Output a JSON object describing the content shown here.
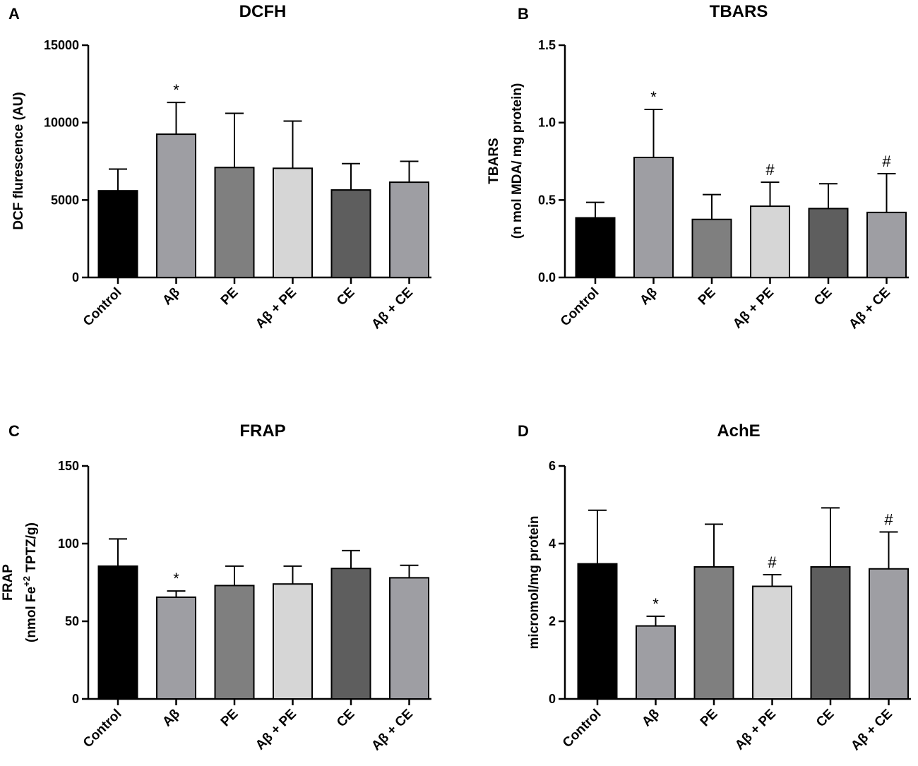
{
  "chart_data": [
    {
      "type": "bar",
      "panel": "A",
      "title": "DCFH",
      "ylabel_lines": [
        "DCF flurescence (AU)"
      ],
      "ylim": [
        0,
        15000
      ],
      "yticks": [
        0,
        5000,
        10000,
        15000
      ],
      "categories": [
        "Control",
        "Aβ",
        "PE",
        "Aβ + PE",
        "CE",
        "Aβ + CE"
      ],
      "values": [
        5600,
        9250,
        7100,
        7050,
        5650,
        6150
      ],
      "errors": [
        1400,
        2050,
        3500,
        3050,
        1700,
        1350
      ],
      "annotations": [
        "",
        "*",
        "",
        "",
        "",
        ""
      ],
      "colors": [
        "#000000",
        "#9e9ea3",
        "#7f7f7f",
        "#d6d6d6",
        "#5e5e5e",
        "#9e9ea3"
      ]
    },
    {
      "type": "bar",
      "panel": "B",
      "title": "TBARS",
      "ylabel_lines": [
        "TBARS",
        "(n mol MDA/ mg protein)"
      ],
      "ylim": [
        0,
        1.5
      ],
      "yticks": [
        0.0,
        0.5,
        1.0,
        1.5
      ],
      "ytick_labels": [
        "0.0",
        "0.5",
        "1.0",
        "1.5"
      ],
      "categories": [
        "Control",
        "Aβ",
        "PE",
        "Aβ + PE",
        "CE",
        "Aβ + CE"
      ],
      "values": [
        0.385,
        0.775,
        0.375,
        0.46,
        0.445,
        0.42
      ],
      "errors": [
        0.1,
        0.31,
        0.16,
        0.155,
        0.16,
        0.25
      ],
      "annotations": [
        "",
        "*",
        "",
        "#",
        "",
        "#"
      ],
      "colors": [
        "#000000",
        "#9e9ea3",
        "#7f7f7f",
        "#d6d6d6",
        "#5e5e5e",
        "#9e9ea3"
      ]
    },
    {
      "type": "bar",
      "panel": "C",
      "title": "FRAP",
      "ylabel_lines": [
        "FRAP",
        "(nmol Fe+2 TPTZ/g)"
      ],
      "ylim": [
        0,
        150
      ],
      "yticks": [
        0,
        50,
        100,
        150
      ],
      "categories": [
        "Control",
        "Aβ",
        "PE",
        "Aβ + PE",
        "CE",
        "Aβ + CE"
      ],
      "values": [
        85.5,
        65.5,
        73,
        74,
        84,
        78
      ],
      "errors": [
        17.5,
        4,
        12.5,
        11.5,
        11.5,
        8
      ],
      "annotations": [
        "",
        "*",
        "",
        "",
        "",
        ""
      ],
      "colors": [
        "#000000",
        "#9e9ea3",
        "#7f7f7f",
        "#d6d6d6",
        "#5e5e5e",
        "#9e9ea3"
      ]
    },
    {
      "type": "bar",
      "panel": "D",
      "title": "AchE",
      "ylabel_lines": [
        "micromol/mg protein"
      ],
      "ylim": [
        0,
        6
      ],
      "yticks": [
        0,
        2,
        4,
        6
      ],
      "categories": [
        "Control",
        "Aβ",
        "PE",
        "Aβ + PE",
        "CE",
        "Aβ + CE"
      ],
      "values": [
        3.48,
        1.88,
        3.4,
        2.9,
        3.4,
        3.35
      ],
      "errors": [
        1.38,
        0.25,
        1.1,
        0.3,
        1.52,
        0.95
      ],
      "annotations": [
        "",
        "*",
        "",
        "#",
        "",
        "#"
      ],
      "colors": [
        "#000000",
        "#9e9ea3",
        "#7f7f7f",
        "#d6d6d6",
        "#5e5e5e",
        "#9e9ea3"
      ]
    }
  ]
}
